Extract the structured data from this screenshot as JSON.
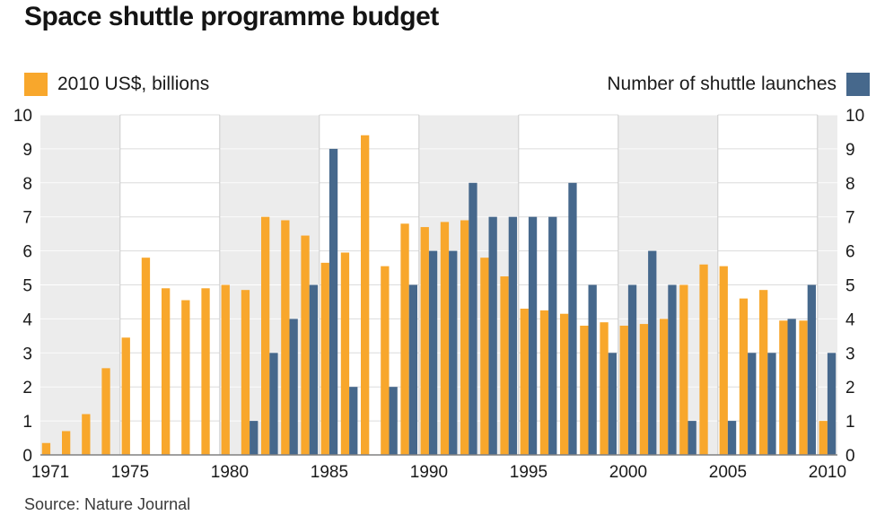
{
  "title": "Space shuttle programme budget",
  "legend": {
    "budget_label": "2010 US$, billions",
    "launches_label": "Number of shuttle launches"
  },
  "source": "Source: Nature Journal",
  "colors": {
    "budget": "#F8A72C",
    "launches": "#46688C",
    "band": "#ECECEC",
    "gridline": "#DCDCDC",
    "vertical_gridline": "#CCCCCC",
    "baseline": "#808080"
  },
  "chart_data": {
    "type": "bar",
    "title": "Space shuttle programme budget",
    "categories": [
      1971,
      1972,
      1973,
      1974,
      1975,
      1976,
      1977,
      1978,
      1979,
      1980,
      1981,
      1982,
      1983,
      1984,
      1985,
      1986,
      1987,
      1988,
      1989,
      1990,
      1991,
      1992,
      1993,
      1994,
      1995,
      1996,
      1997,
      1998,
      1999,
      2000,
      2001,
      2002,
      2003,
      2004,
      2005,
      2006,
      2007,
      2008,
      2009,
      2010
    ],
    "series": [
      {
        "name": "2010 US$, billions",
        "color": "#F8A72C",
        "values": [
          0.35,
          0.7,
          1.2,
          2.55,
          3.45,
          5.8,
          4.9,
          4.55,
          4.9,
          5.0,
          4.85,
          7.0,
          6.9,
          6.45,
          5.65,
          5.95,
          9.4,
          5.55,
          6.8,
          6.7,
          6.85,
          6.9,
          5.8,
          5.25,
          4.3,
          4.25,
          4.15,
          3.8,
          3.9,
          3.8,
          3.85,
          4.0,
          5.0,
          5.6,
          5.55,
          4.6,
          4.85,
          3.95,
          3.95,
          1.0
        ]
      },
      {
        "name": "Number of shuttle launches",
        "color": "#46688C",
        "values": [
          0,
          0,
          0,
          0,
          0,
          0,
          0,
          0,
          0,
          0,
          1,
          3,
          4,
          5,
          9,
          2,
          0,
          2,
          5,
          6,
          6,
          8,
          7,
          7,
          7,
          7,
          8,
          5,
          3,
          5,
          6,
          5,
          1,
          0,
          1,
          3,
          3,
          4,
          5,
          3
        ]
      }
    ],
    "ylim": [
      0,
      10
    ],
    "yticks": [
      0,
      1,
      2,
      3,
      4,
      5,
      6,
      7,
      8,
      9,
      10
    ],
    "xtick_labels": [
      "1971",
      "1975",
      "1980",
      "1985",
      "1990",
      "1995",
      "2000",
      "2005",
      "2010"
    ],
    "grid": true,
    "legend_position": "top",
    "xlabel": "",
    "ylabel": ""
  }
}
